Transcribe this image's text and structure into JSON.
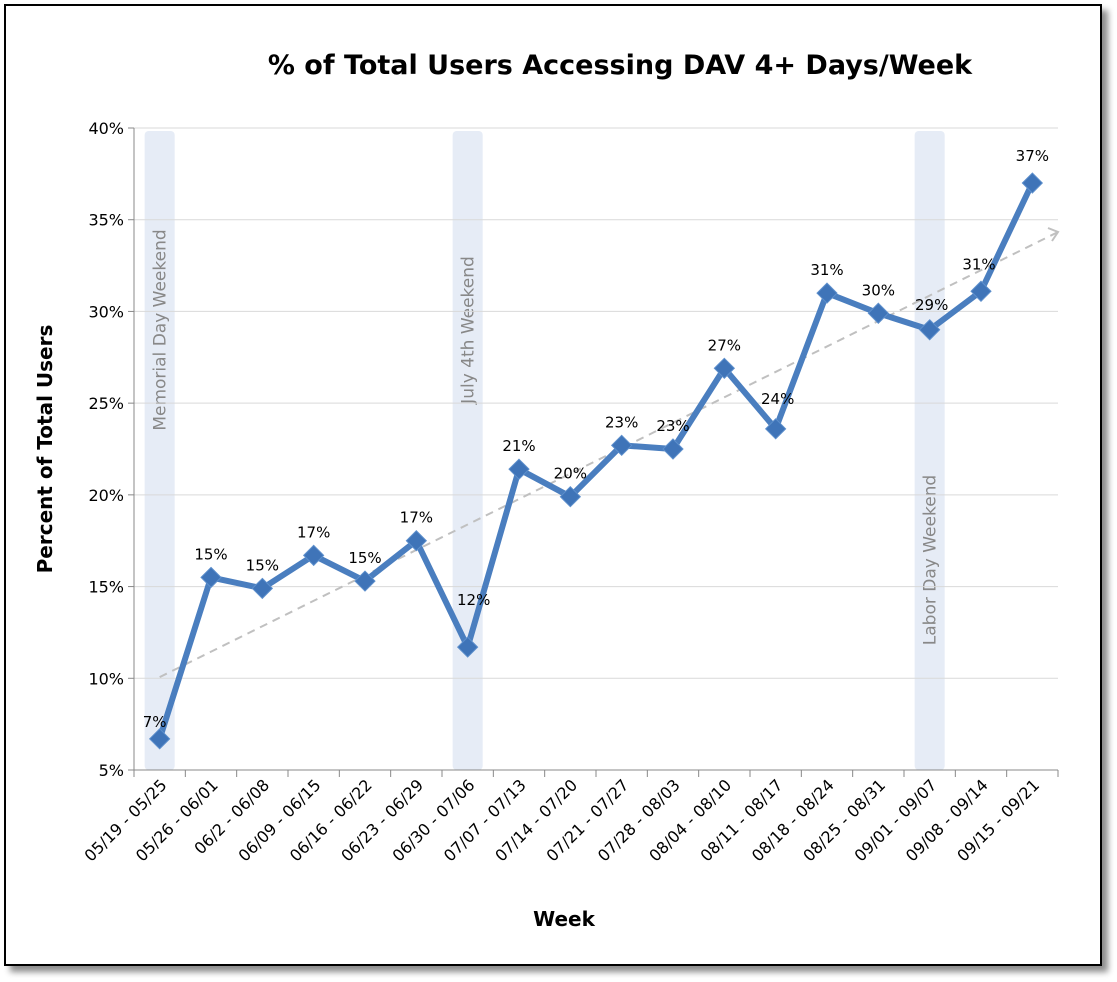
{
  "chart_data": {
    "type": "line",
    "title": "% of Total Users Accessing DAV 4+ Days/Week",
    "xlabel": "Week",
    "ylabel": "Percent of Total Users",
    "ylim": [
      5,
      40
    ],
    "yticks": [
      "5%",
      "10%",
      "15%",
      "20%",
      "25%",
      "30%",
      "35%",
      "40%"
    ],
    "grid": true,
    "categories": [
      "05/19 - 05/25",
      "05/26 - 06/01",
      "06/2 - 06/08",
      "06/09 - 06/15",
      "06/16 - 06/22",
      "06/23 - 06/29",
      "06/30 - 07/06",
      "07/07 - 07/13",
      "07/14 - 07/20",
      "07/21 - 07/27",
      "07/28 - 08/03",
      "08/04 - 08/10",
      "08/11 - 08/17",
      "08/18 - 08/24",
      "08/25 - 08/31",
      "09/01 - 09/07",
      "09/08 - 09/14",
      "09/15 - 09/21"
    ],
    "series": [
      {
        "values": [
          6.7,
          15.5,
          14.9,
          16.7,
          15.3,
          17.5,
          11.7,
          21.4,
          19.9,
          22.7,
          22.5,
          26.9,
          23.6,
          31.0,
          29.9,
          29.0,
          31.1,
          37.0
        ],
        "labels": [
          "7%",
          "15%",
          "15%",
          "17%",
          "15%",
          "17%",
          "12%",
          "21%",
          "20%",
          "23%",
          "23%",
          "27%",
          "24%",
          "31%",
          "30%",
          "29%",
          "31%",
          "37%"
        ],
        "color": "#4a7ebf"
      }
    ],
    "trendline": {
      "type": "linear",
      "style": "dashed",
      "color": "#c0c0c0"
    },
    "highlight_bands": [
      {
        "category_index": 0,
        "label": "Memorial Day Weekend"
      },
      {
        "category_index": 6,
        "label": "July 4th Weekend"
      },
      {
        "category_index": 15,
        "label": "Labor Day Weekend"
      }
    ],
    "band_color": "#e6ecf6"
  }
}
